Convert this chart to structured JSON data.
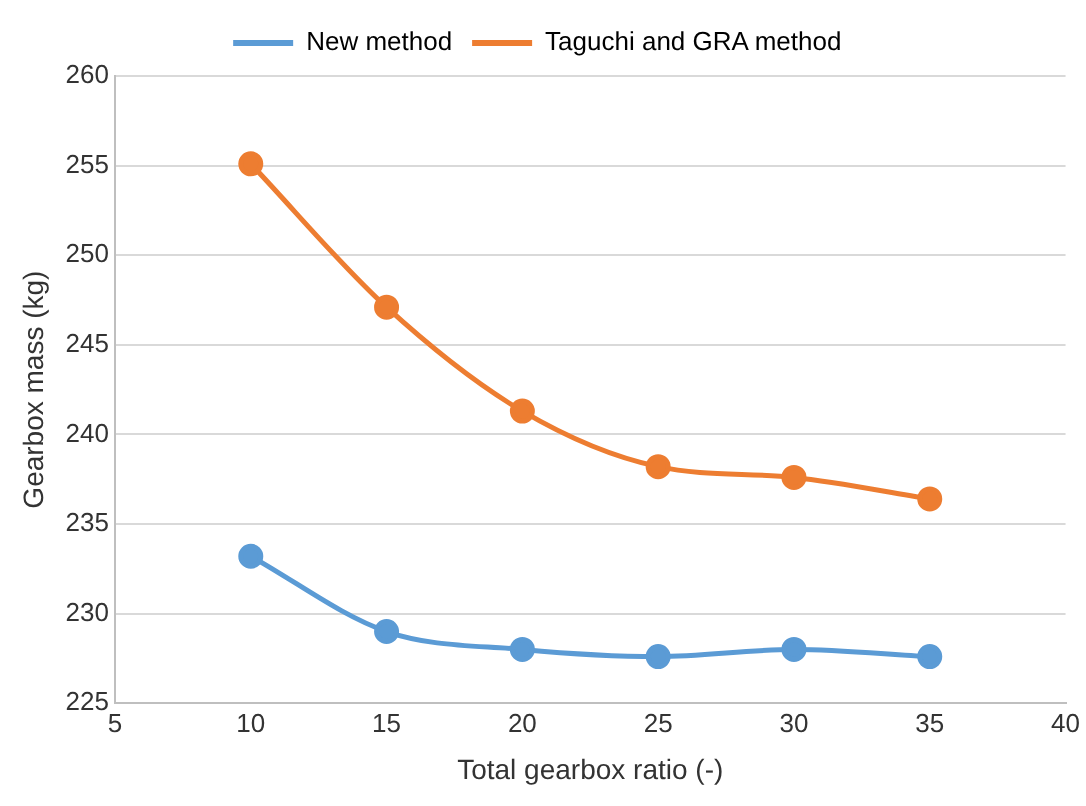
{
  "chart_data": {
    "type": "line",
    "xlabel": "Total gearbox ratio (-)",
    "ylabel": "Gearbox mass (kg)",
    "x": [
      10,
      15,
      20,
      25,
      30,
      35
    ],
    "series": [
      {
        "name": "New method",
        "color": "#5b9bd5",
        "values": [
          233.2,
          229.0,
          228.0,
          227.6,
          228.0,
          227.6
        ]
      },
      {
        "name": "Taguchi and GRA method",
        "color": "#ed7d31",
        "values": [
          255.1,
          247.1,
          241.3,
          238.2,
          237.6,
          236.4
        ]
      }
    ],
    "xlim": [
      5,
      40
    ],
    "xticks": [
      5,
      10,
      15,
      20,
      25,
      30,
      35,
      40
    ],
    "ylim": [
      225,
      260
    ],
    "yticks": [
      225,
      230,
      235,
      240,
      245,
      250,
      255,
      260
    ],
    "grid": "y",
    "legend": "top",
    "marker": "circle",
    "line_style": "solid"
  }
}
